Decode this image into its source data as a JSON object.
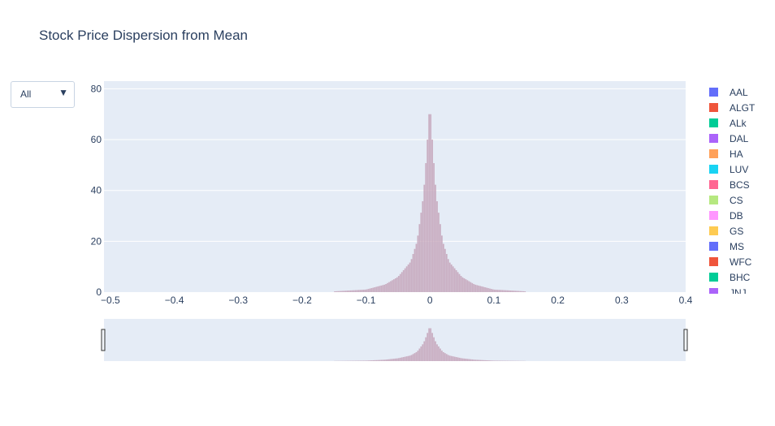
{
  "title": "Stock Price Dispersion from Mean",
  "dropdown": {
    "selected": "All",
    "arrow": "▼"
  },
  "chart_data": {
    "type": "histogram",
    "title": "Stock Price Dispersion from Mean",
    "xlabel": "",
    "ylabel": "",
    "xlim": [
      -0.51,
      0.4
    ],
    "ylim": [
      0,
      83
    ],
    "x_ticks": [
      "−0.5",
      "−0.4",
      "−0.3",
      "−0.2",
      "−0.1",
      "0",
      "0.1",
      "0.2",
      "0.3",
      "0.4"
    ],
    "y_ticks": [
      "0",
      "20",
      "40",
      "60",
      "80"
    ],
    "x_tick_values": [
      -0.5,
      -0.4,
      -0.3,
      -0.2,
      -0.1,
      0,
      0.1,
      0.2,
      0.3,
      0.4
    ],
    "y_tick_values": [
      0,
      20,
      40,
      60,
      80
    ],
    "barmode": "overlay",
    "grid": true,
    "legend_position": "right",
    "range_slider": true,
    "peak_x": 0,
    "peak_count": 75,
    "approx_counts": [
      {
        "x": -0.15,
        "y": 0.3
      },
      {
        "x": -0.1,
        "y": 1
      },
      {
        "x": -0.07,
        "y": 3
      },
      {
        "x": -0.05,
        "y": 6
      },
      {
        "x": -0.03,
        "y": 12
      },
      {
        "x": -0.02,
        "y": 20
      },
      {
        "x": -0.01,
        "y": 38
      },
      {
        "x": -0.005,
        "y": 55
      },
      {
        "x": 0,
        "y": 75
      },
      {
        "x": 0.005,
        "y": 55
      },
      {
        "x": 0.01,
        "y": 38
      },
      {
        "x": 0.02,
        "y": 20
      },
      {
        "x": 0.03,
        "y": 12
      },
      {
        "x": 0.05,
        "y": 6
      },
      {
        "x": 0.07,
        "y": 3
      },
      {
        "x": 0.1,
        "y": 1
      },
      {
        "x": 0.15,
        "y": 0.3
      }
    ],
    "series": [
      {
        "name": "AAL",
        "color": "#636efa"
      },
      {
        "name": "ALGT",
        "color": "#EF553B"
      },
      {
        "name": "ALk",
        "color": "#00cc96"
      },
      {
        "name": "DAL",
        "color": "#ab63fa"
      },
      {
        "name": "HA",
        "color": "#FFA15A"
      },
      {
        "name": "LUV",
        "color": "#19d3f3"
      },
      {
        "name": "BCS",
        "color": "#FF6692"
      },
      {
        "name": "CS",
        "color": "#B6E880"
      },
      {
        "name": "DB",
        "color": "#FF97FF"
      },
      {
        "name": "GS",
        "color": "#FECB52"
      },
      {
        "name": "MS",
        "color": "#636efa"
      },
      {
        "name": "WFC",
        "color": "#EF553B"
      },
      {
        "name": "BHC",
        "color": "#00cc96"
      },
      {
        "name": "JNJ",
        "color": "#ab63fa"
      }
    ],
    "colors": {
      "plot_bg": "#e5ecf6",
      "grid": "#ffffff",
      "text": "#2a3f5f",
      "bars": "#c4a3b8"
    }
  }
}
